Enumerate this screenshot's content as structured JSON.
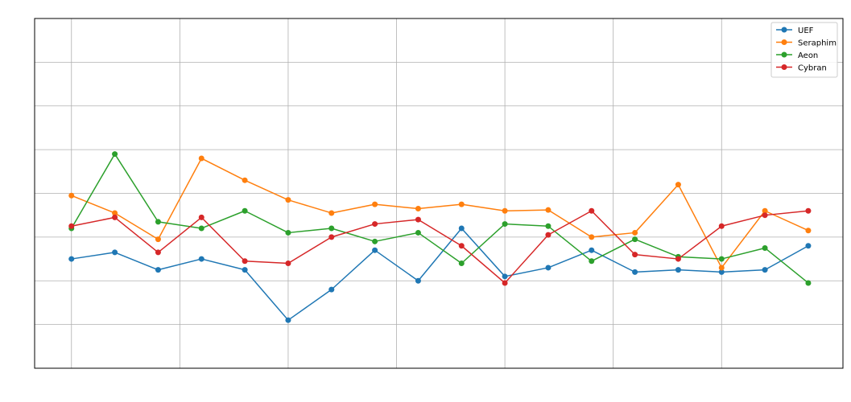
{
  "chart_data": {
    "type": "line",
    "title": "",
    "xlabel": "",
    "ylabel": "",
    "grid": true,
    "legend_position": "top-right",
    "x": [
      0,
      1,
      2,
      3,
      4,
      5,
      6,
      7,
      8,
      9,
      10,
      11,
      12,
      13,
      14,
      15,
      16,
      17
    ],
    "xlim": [
      -0.85,
      17.8
    ],
    "ylim": [
      0,
      8
    ],
    "series": [
      {
        "name": "UEF",
        "color": "#1f77b4",
        "values": [
          2.5,
          2.65,
          2.25,
          2.5,
          2.25,
          1.1,
          1.8,
          2.7,
          2.0,
          3.2,
          2.1,
          2.3,
          2.7,
          2.2,
          2.25,
          2.2,
          2.25,
          2.8
        ]
      },
      {
        "name": "Seraphim",
        "color": "#ff7f0e",
        "values": [
          3.95,
          3.55,
          2.95,
          4.8,
          4.3,
          3.85,
          3.55,
          3.75,
          3.65,
          3.75,
          3.6,
          3.62,
          3.0,
          3.1,
          4.2,
          2.3,
          3.6,
          3.15
        ]
      },
      {
        "name": "Aeon",
        "color": "#2ca02c",
        "values": [
          3.2,
          4.9,
          3.35,
          3.2,
          3.6,
          3.1,
          3.2,
          2.9,
          3.1,
          2.4,
          3.3,
          3.25,
          2.45,
          2.95,
          2.55,
          2.5,
          2.75,
          1.95
        ]
      },
      {
        "name": "Cybran",
        "color": "#d62728",
        "values": [
          3.25,
          3.45,
          2.65,
          3.45,
          2.45,
          2.4,
          3.0,
          3.3,
          3.4,
          2.8,
          1.95,
          3.05,
          3.6,
          2.6,
          2.5,
          3.25,
          3.5,
          3.6
        ]
      }
    ]
  }
}
